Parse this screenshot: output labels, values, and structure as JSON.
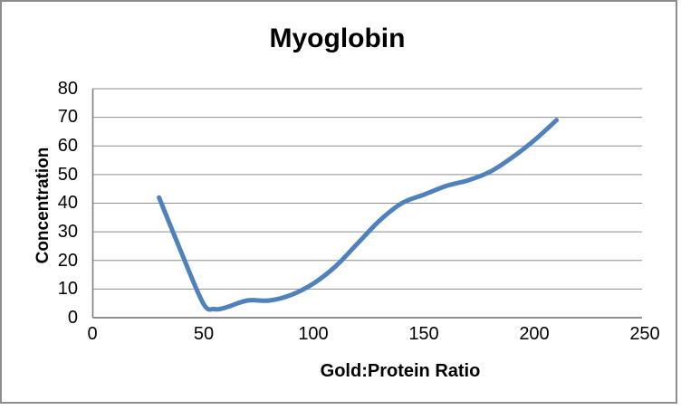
{
  "chart_data": {
    "type": "line",
    "title": "Myoglobin",
    "xlabel": "Gold:Protein Ratio",
    "ylabel": "Concentration",
    "xlim": [
      0,
      250
    ],
    "ylim": [
      0,
      80
    ],
    "xticks": [
      0,
      50,
      100,
      150,
      200,
      250
    ],
    "yticks": [
      0,
      10,
      20,
      30,
      40,
      50,
      60,
      70,
      80
    ],
    "grid": "horizontal-only",
    "legend": "none",
    "line_color": "#4F81BD",
    "gridline_color": "#8e8e8e",
    "axis_color": "#7f7f7f",
    "line_style": "smooth, thick, round caps, no markers",
    "series": [
      {
        "name": "Myoglobin",
        "points": [
          [
            30,
            42
          ],
          [
            40,
            23
          ],
          [
            50,
            5
          ],
          [
            55,
            3
          ],
          [
            60,
            3.5
          ],
          [
            70,
            6
          ],
          [
            80,
            6
          ],
          [
            90,
            8
          ],
          [
            100,
            12
          ],
          [
            110,
            18
          ],
          [
            120,
            26
          ],
          [
            130,
            34
          ],
          [
            140,
            40
          ],
          [
            150,
            43
          ],
          [
            160,
            46
          ],
          [
            170,
            48
          ],
          [
            180,
            51
          ],
          [
            190,
            56
          ],
          [
            200,
            62
          ],
          [
            210,
            69
          ]
        ]
      }
    ]
  }
}
